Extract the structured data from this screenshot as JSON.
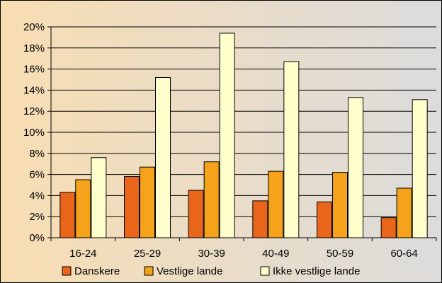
{
  "chart_data": {
    "type": "bar",
    "categories": [
      "16-24",
      "25-29",
      "30-39",
      "40-49",
      "50-59",
      "60-64"
    ],
    "series": [
      {
        "name": "Danskere",
        "color": "#E8651A",
        "values": [
          4.3,
          5.8,
          4.5,
          3.5,
          3.4,
          1.9
        ]
      },
      {
        "name": "Vestlige lande",
        "color": "#F5A31A",
        "values": [
          5.5,
          6.7,
          7.2,
          6.3,
          6.2,
          4.7
        ]
      },
      {
        "name": "Ikke vestlige lande",
        "color": "#FFFFCC",
        "values": [
          7.6,
          15.2,
          19.4,
          16.7,
          13.3,
          13.1
        ]
      }
    ],
    "ylim": [
      0,
      20
    ],
    "yticks": [
      0,
      2,
      4,
      6,
      8,
      10,
      12,
      14,
      16,
      18,
      20
    ],
    "ytick_labels": [
      "0%",
      "2%",
      "4%",
      "6%",
      "8%",
      "10%",
      "12%",
      "14%",
      "16%",
      "18%",
      "20%"
    ],
    "grid": true,
    "legend_position": "bottom",
    "background_gradient": [
      "#F8DDB2",
      "#DCDCDC"
    ]
  }
}
